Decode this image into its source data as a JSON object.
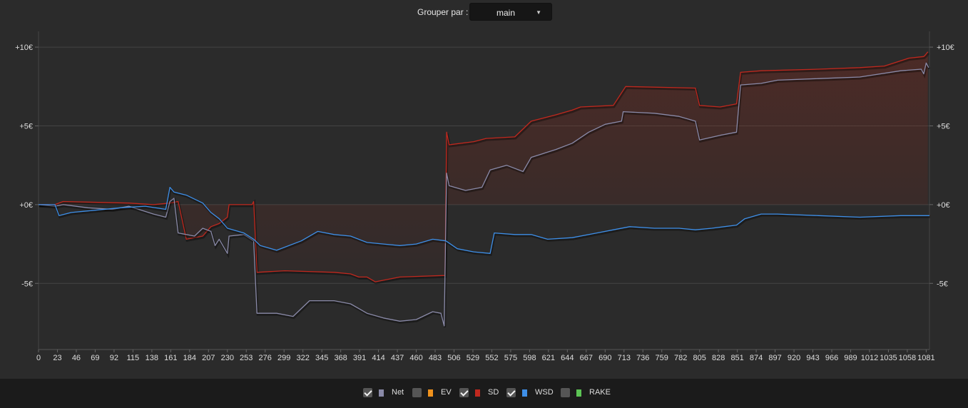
{
  "header": {
    "group_label": "Grouper par :",
    "group_value": "main",
    "caret_icon": "chevron-down-icon"
  },
  "legend": [
    {
      "label": "Net",
      "checked": true,
      "color": "#8a8aa8"
    },
    {
      "label": "EV",
      "checked": false,
      "color": "#f0921d"
    },
    {
      "label": "SD",
      "checked": true,
      "color": "#c0281e"
    },
    {
      "label": "WSD",
      "checked": true,
      "color": "#3e8fe8"
    },
    {
      "label": "RAKE",
      "checked": false,
      "color": "#5cc454"
    }
  ],
  "chart_data": {
    "type": "line",
    "y_ticks": [
      {
        "value": 10,
        "label": "+10€"
      },
      {
        "value": 5,
        "label": "+5€"
      },
      {
        "value": 0,
        "label": "+0€"
      },
      {
        "value": -5,
        "label": "-5€"
      }
    ],
    "x_ticks": [
      "0",
      "23",
      "46",
      "69",
      "92",
      "115",
      "138",
      "161",
      "184",
      "207",
      "230",
      "253",
      "276",
      "299",
      "322",
      "345",
      "368",
      "391",
      "414",
      "437",
      "460",
      "483",
      "506",
      "529",
      "552",
      "575",
      "598",
      "621",
      "644",
      "667",
      "690",
      "713",
      "736",
      "759",
      "782",
      "805",
      "828",
      "851",
      "874",
      "897",
      "920",
      "943",
      "966",
      "989",
      "1012",
      "1035",
      "1058",
      "1081"
    ],
    "xlim": [
      0,
      1085
    ],
    "ylim": [
      -9.2,
      11
    ],
    "grid": true,
    "series": [
      {
        "name": "SD",
        "color": "#c0281e",
        "fill": true,
        "points": [
          [
            0,
            0
          ],
          [
            20,
            0
          ],
          [
            30,
            0.2
          ],
          [
            110,
            0.1
          ],
          [
            140,
            0
          ],
          [
            160,
            0.1
          ],
          [
            170,
            0.2
          ],
          [
            180,
            -2.2
          ],
          [
            200,
            -2
          ],
          [
            210,
            -1.4
          ],
          [
            220,
            -1.2
          ],
          [
            230,
            -0.8
          ],
          [
            232,
            0
          ],
          [
            260,
            0
          ],
          [
            262,
            0.2
          ],
          [
            266,
            -4.3
          ],
          [
            300,
            -4.2
          ],
          [
            360,
            -4.3
          ],
          [
            380,
            -4.4
          ],
          [
            390,
            -4.6
          ],
          [
            400,
            -4.6
          ],
          [
            410,
            -4.9
          ],
          [
            440,
            -4.6
          ],
          [
            495,
            -4.5
          ],
          [
            497,
            4.6
          ],
          [
            500,
            3.8
          ],
          [
            530,
            4
          ],
          [
            545,
            4.2
          ],
          [
            580,
            4.3
          ],
          [
            600,
            5.3
          ],
          [
            630,
            5.7
          ],
          [
            650,
            6
          ],
          [
            660,
            6.2
          ],
          [
            700,
            6.3
          ],
          [
            715,
            7.5
          ],
          [
            800,
            7.4
          ],
          [
            805,
            6.3
          ],
          [
            830,
            6.2
          ],
          [
            850,
            6.4
          ],
          [
            855,
            8.4
          ],
          [
            880,
            8.5
          ],
          [
            950,
            8.6
          ],
          [
            1000,
            8.7
          ],
          [
            1030,
            8.8
          ],
          [
            1060,
            9.3
          ],
          [
            1078,
            9.4
          ],
          [
            1080,
            9.5
          ],
          [
            1083,
            9.7
          ]
        ]
      },
      {
        "name": "Net",
        "color": "#8a8aa8",
        "fill": false,
        "points": [
          [
            0,
            0
          ],
          [
            20,
            -0.1
          ],
          [
            30,
            0
          ],
          [
            60,
            -0.2
          ],
          [
            90,
            -0.3
          ],
          [
            110,
            -0.1
          ],
          [
            140,
            -0.6
          ],
          [
            155,
            -0.8
          ],
          [
            160,
            0.2
          ],
          [
            165,
            0.4
          ],
          [
            170,
            -1.8
          ],
          [
            190,
            -2
          ],
          [
            200,
            -1.5
          ],
          [
            210,
            -1.7
          ],
          [
            215,
            -2.6
          ],
          [
            220,
            -2.2
          ],
          [
            230,
            -3.1
          ],
          [
            232,
            -2
          ],
          [
            250,
            -1.9
          ],
          [
            262,
            -2.3
          ],
          [
            266,
            -6.9
          ],
          [
            290,
            -6.9
          ],
          [
            310,
            -7.1
          ],
          [
            320,
            -6.6
          ],
          [
            330,
            -6.1
          ],
          [
            360,
            -6.1
          ],
          [
            380,
            -6.3
          ],
          [
            400,
            -6.9
          ],
          [
            420,
            -7.2
          ],
          [
            440,
            -7.4
          ],
          [
            460,
            -7.3
          ],
          [
            480,
            -6.8
          ],
          [
            490,
            -6.9
          ],
          [
            494,
            -7.7
          ],
          [
            497,
            2
          ],
          [
            500,
            1.2
          ],
          [
            520,
            0.9
          ],
          [
            540,
            1.1
          ],
          [
            550,
            2.2
          ],
          [
            570,
            2.5
          ],
          [
            590,
            2.1
          ],
          [
            600,
            3
          ],
          [
            630,
            3.5
          ],
          [
            650,
            3.9
          ],
          [
            670,
            4.6
          ],
          [
            690,
            5.1
          ],
          [
            710,
            5.3
          ],
          [
            712,
            5.9
          ],
          [
            750,
            5.8
          ],
          [
            780,
            5.6
          ],
          [
            800,
            5.3
          ],
          [
            805,
            4.1
          ],
          [
            830,
            4.4
          ],
          [
            850,
            4.6
          ],
          [
            855,
            7.6
          ],
          [
            880,
            7.7
          ],
          [
            900,
            7.9
          ],
          [
            950,
            8
          ],
          [
            1000,
            8.1
          ],
          [
            1050,
            8.5
          ],
          [
            1075,
            8.6
          ],
          [
            1078,
            8.3
          ],
          [
            1081,
            9
          ],
          [
            1084,
            8.7
          ]
        ]
      },
      {
        "name": "WSD",
        "color": "#3e8fe8",
        "fill": false,
        "points": [
          [
            0,
            0
          ],
          [
            20,
            0
          ],
          [
            25,
            -0.7
          ],
          [
            40,
            -0.5
          ],
          [
            60,
            -0.4
          ],
          [
            100,
            -0.2
          ],
          [
            130,
            -0.1
          ],
          [
            155,
            -0.3
          ],
          [
            160,
            1.1
          ],
          [
            165,
            0.8
          ],
          [
            180,
            0.6
          ],
          [
            200,
            0.1
          ],
          [
            210,
            -0.5
          ],
          [
            220,
            -0.9
          ],
          [
            230,
            -1.5
          ],
          [
            250,
            -1.8
          ],
          [
            262,
            -2.2
          ],
          [
            270,
            -2.6
          ],
          [
            290,
            -2.9
          ],
          [
            320,
            -2.3
          ],
          [
            340,
            -1.7
          ],
          [
            360,
            -1.9
          ],
          [
            380,
            -2
          ],
          [
            400,
            -2.4
          ],
          [
            420,
            -2.5
          ],
          [
            440,
            -2.6
          ],
          [
            460,
            -2.5
          ],
          [
            480,
            -2.2
          ],
          [
            496,
            -2.3
          ],
          [
            510,
            -2.8
          ],
          [
            530,
            -3
          ],
          [
            550,
            -3.1
          ],
          [
            555,
            -1.8
          ],
          [
            580,
            -1.9
          ],
          [
            600,
            -1.9
          ],
          [
            620,
            -2.2
          ],
          [
            650,
            -2.1
          ],
          [
            680,
            -1.8
          ],
          [
            700,
            -1.6
          ],
          [
            720,
            -1.4
          ],
          [
            750,
            -1.5
          ],
          [
            780,
            -1.5
          ],
          [
            800,
            -1.6
          ],
          [
            820,
            -1.5
          ],
          [
            850,
            -1.3
          ],
          [
            860,
            -0.9
          ],
          [
            880,
            -0.6
          ],
          [
            900,
            -0.6
          ],
          [
            950,
            -0.7
          ],
          [
            1000,
            -0.8
          ],
          [
            1050,
            -0.7
          ],
          [
            1085,
            -0.7
          ]
        ]
      }
    ]
  }
}
